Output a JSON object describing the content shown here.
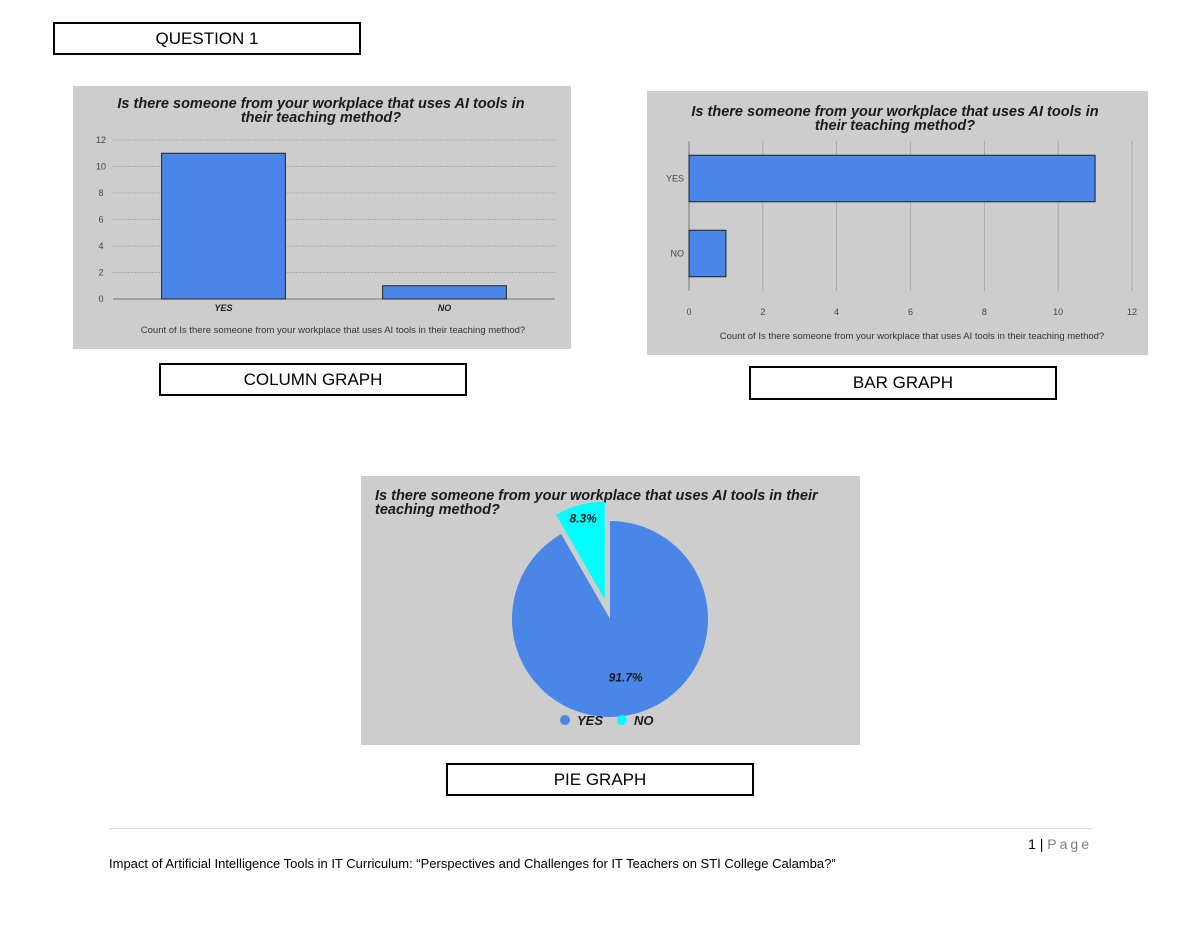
{
  "labels": {
    "question": "QUESTION 1",
    "column": "COLUMN GRAPH",
    "bar": "BAR GRAPH",
    "pie": "PIE GRAPH"
  },
  "colors": {
    "panel_bg": "#cdcdcd",
    "yes": "#4a86e8",
    "no": "#00ffff"
  },
  "chart_data": [
    {
      "type": "bar",
      "orientation": "vertical",
      "title_lines": [
        "Is there someone from your workplace that uses AI tools in",
        "their teaching method?"
      ],
      "categories": [
        "YES",
        "NO"
      ],
      "values": [
        11,
        1
      ],
      "ylim": [
        0,
        12
      ],
      "yticks": [
        "0",
        "2",
        "4",
        "6",
        "8",
        "10",
        "12"
      ],
      "xlabel": "Count of Is there someone from your workplace that uses AI tools in their teaching method?",
      "grid": true
    },
    {
      "type": "bar",
      "orientation": "horizontal",
      "title_lines": [
        "Is there someone from your workplace that uses AI tools in",
        "their teaching method?"
      ],
      "categories": [
        "YES",
        "NO"
      ],
      "values": [
        11,
        1
      ],
      "xlim": [
        0,
        12
      ],
      "xticks": [
        "0",
        "2",
        "4",
        "6",
        "8",
        "10",
        "12"
      ],
      "xlabel": "Count of Is there someone from your workplace that uses AI tools in their teaching method?",
      "grid": true
    },
    {
      "type": "pie",
      "title_lines": [
        "Is there someone from your workplace that uses AI tools in their",
        "teaching method?"
      ],
      "slices": [
        {
          "name": "YES",
          "value": 91.7,
          "label": "91.7%"
        },
        {
          "name": "NO",
          "value": 8.3,
          "label": "8.3%",
          "exploded": true
        }
      ],
      "legend": [
        "YES",
        "NO"
      ],
      "legend_position": "bottom"
    }
  ],
  "footer": {
    "page_number": "1",
    "page_word": "Page",
    "text": "Impact of Artificial Intelligence Tools in IT Curriculum: “Perspectives and Challenges for IT Teachers on STI College Calamba?”"
  }
}
